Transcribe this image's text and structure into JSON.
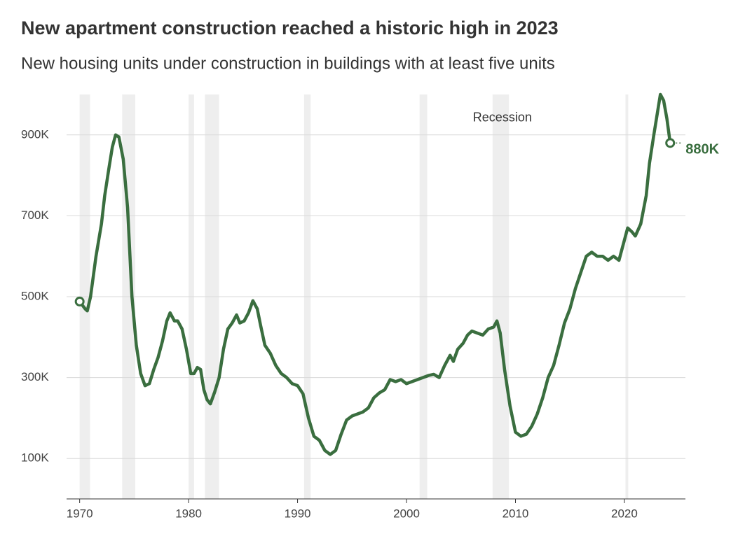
{
  "chart_data": {
    "type": "line",
    "title": "New apartment construction reached a historic high in 2023",
    "subtitle": "New housing units under construction in buildings with at least five units",
    "recession_label": {
      "text": "Recession",
      "x": 2008.8,
      "y": 942
    },
    "recessions": [
      [
        1970.0,
        1970.96
      ],
      [
        1973.9,
        1975.1
      ],
      [
        1980.0,
        1980.5
      ],
      [
        1981.5,
        1982.8
      ],
      [
        1990.6,
        1991.2
      ],
      [
        2001.2,
        2001.9
      ],
      [
        2007.9,
        2009.4
      ],
      [
        2020.1,
        2020.35
      ]
    ],
    "xlim": [
      1968.8,
      2025.6
    ],
    "xticks": [
      1970,
      1980,
      1990,
      2000,
      2010,
      2020
    ],
    "ylim": [
      0,
      1000
    ],
    "yticks": [
      {
        "value": 100,
        "label": "100K"
      },
      {
        "value": 300,
        "label": "300K"
      },
      {
        "value": 500,
        "label": "500K"
      },
      {
        "value": 700,
        "label": "700K"
      },
      {
        "value": 900,
        "label": "900K"
      }
    ],
    "grid": true,
    "x": [
      1970.0,
      1970.5,
      1970.7,
      1971.0,
      1971.5,
      1972.0,
      1972.3,
      1972.7,
      1973.0,
      1973.3,
      1973.6,
      1974.0,
      1974.4,
      1974.8,
      1975.2,
      1975.6,
      1976.0,
      1976.4,
      1976.8,
      1977.2,
      1977.6,
      1978.0,
      1978.3,
      1978.7,
      1979.0,
      1979.4,
      1979.8,
      1980.2,
      1980.5,
      1980.8,
      1981.1,
      1981.4,
      1981.7,
      1982.0,
      1982.4,
      1982.8,
      1983.2,
      1983.6,
      1984.0,
      1984.4,
      1984.7,
      1985.1,
      1985.5,
      1985.9,
      1986.3,
      1986.6,
      1987.0,
      1987.5,
      1988.0,
      1988.5,
      1989.0,
      1989.5,
      1990.0,
      1990.5,
      1991.0,
      1991.5,
      1992.0,
      1992.5,
      1993.0,
      1993.5,
      1994.0,
      1994.5,
      1995.0,
      1995.5,
      1996.0,
      1996.5,
      1997.0,
      1997.5,
      1998.0,
      1998.5,
      1999.0,
      1999.5,
      2000.0,
      2000.5,
      2001.0,
      2001.5,
      2002.0,
      2002.5,
      2003.0,
      2003.5,
      2004.0,
      2004.3,
      2004.7,
      2005.2,
      2005.6,
      2006.0,
      2006.5,
      2007.0,
      2007.5,
      2008.0,
      2008.3,
      2008.6,
      2009.0,
      2009.5,
      2010.0,
      2010.5,
      2011.0,
      2011.5,
      2012.0,
      2012.5,
      2013.0,
      2013.5,
      2014.0,
      2014.5,
      2015.0,
      2015.5,
      2016.0,
      2016.5,
      2017.0,
      2017.5,
      2018.0,
      2018.5,
      2019.0,
      2019.5,
      2020.0,
      2020.3,
      2020.7,
      2021.0,
      2021.5,
      2022.0,
      2022.3,
      2022.7,
      2023.0,
      2023.3,
      2023.6,
      2023.9,
      2024.2
    ],
    "series": [
      {
        "color": "#3a6e3f",
        "values": [
          488,
          470,
          465,
          500,
          600,
          680,
          750,
          820,
          870,
          900,
          895,
          840,
          720,
          500,
          380,
          310,
          280,
          285,
          320,
          350,
          390,
          440,
          460,
          440,
          440,
          420,
          370,
          310,
          310,
          325,
          320,
          270,
          245,
          235,
          265,
          300,
          370,
          420,
          435,
          455,
          435,
          440,
          460,
          490,
          470,
          430,
          380,
          360,
          330,
          310,
          300,
          285,
          280,
          260,
          200,
          155,
          145,
          120,
          110,
          120,
          160,
          195,
          205,
          210,
          215,
          225,
          250,
          262,
          270,
          295,
          290,
          295,
          285,
          290,
          295,
          300,
          305,
          308,
          300,
          330,
          355,
          340,
          370,
          385,
          405,
          415,
          410,
          405,
          420,
          425,
          440,
          410,
          320,
          230,
          165,
          155,
          160,
          180,
          210,
          250,
          300,
          330,
          380,
          435,
          470,
          520,
          560,
          600,
          610,
          600,
          600,
          590,
          600,
          590,
          640,
          670,
          660,
          650,
          680,
          750,
          830,
          900,
          950,
          1000,
          985,
          940,
          880
        ],
        "value_labels": [
          null,
          null,
          null,
          null,
          null,
          null,
          null,
          null,
          null,
          null,
          null,
          null,
          null,
          null,
          null,
          null,
          null,
          null,
          null,
          null,
          null,
          null,
          null,
          null,
          null,
          null,
          null,
          null,
          null,
          null,
          null,
          null,
          null,
          null,
          null,
          null,
          null,
          null,
          null,
          null,
          null,
          null,
          null,
          null,
          null,
          null,
          null,
          null,
          null,
          null,
          null,
          null,
          null,
          null,
          null,
          null,
          null,
          null,
          null,
          null,
          null,
          null,
          null,
          null,
          null,
          null,
          null,
          null,
          null,
          null,
          null,
          null,
          null,
          null,
          null,
          null,
          null,
          null,
          null,
          null,
          null,
          null,
          null,
          null,
          null,
          null,
          null,
          null,
          null,
          null,
          null,
          null,
          null,
          null,
          null,
          null,
          null,
          null,
          null,
          null,
          null,
          null,
          null,
          null,
          null,
          null,
          null,
          null,
          null,
          null,
          null,
          null,
          null,
          null,
          null,
          null,
          null,
          null,
          null,
          null,
          null,
          null,
          null,
          null,
          null,
          null,
          "880K"
        ]
      }
    ]
  }
}
